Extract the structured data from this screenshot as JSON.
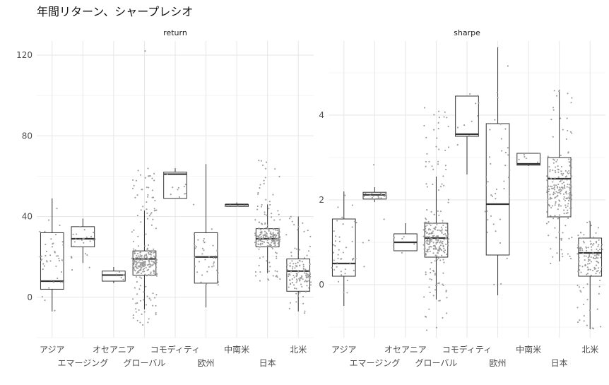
{
  "chart_data": {
    "type": "boxplot",
    "title": "年間リターン、シャープレシオ",
    "categories": [
      "アジア",
      "エマージング",
      "オセアニア",
      "グローバル",
      "コモディティ",
      "欧州",
      "中南米",
      "日本",
      "北米"
    ],
    "panels": [
      {
        "name": "return",
        "ylim": [
          -20,
          127
        ],
        "yticks": [
          0,
          40,
          80,
          120
        ],
        "boxes": [
          {
            "category": "アジア",
            "min": -7,
            "q1": 4,
            "median": 8,
            "q3": 32,
            "max": 49,
            "n": 45,
            "jitter_spread": [
              -8,
              44
            ]
          },
          {
            "category": "エマージング",
            "min": 17,
            "q1": 25,
            "median": 29,
            "q3": 35,
            "max": 39,
            "n": 25,
            "jitter_spread": [
              6,
              40
            ]
          },
          {
            "category": "オセアニア",
            "min": 7,
            "q1": 8,
            "median": 11,
            "q3": 13,
            "max": 15,
            "n": 6,
            "jitter_spread": [
              7,
              15
            ]
          },
          {
            "category": "グローバル",
            "min": -6,
            "q1": 11,
            "median": 19,
            "q3": 23,
            "max": 43,
            "n": 260,
            "jitter_spread": [
              -14,
              64
            ],
            "outliers": [
              122
            ]
          },
          {
            "category": "コモディティ",
            "min": 49,
            "q1": 49,
            "median": 61,
            "q3": 62,
            "max": 64,
            "n": 10,
            "jitter_spread": [
              48,
              64
            ]
          },
          {
            "category": "欧州",
            "min": -5,
            "q1": 7,
            "median": 20,
            "q3": 32,
            "max": 66,
            "n": 40,
            "jitter_spread": [
              -5,
              46
            ]
          },
          {
            "category": "中南米",
            "min": 45,
            "q1": 45,
            "median": 46,
            "q3": 46,
            "max": 47,
            "n": 6,
            "jitter_spread": [
              45,
              47
            ]
          },
          {
            "category": "日本",
            "min": 12,
            "q1": 25,
            "median": 29,
            "q3": 34,
            "max": 46,
            "n": 220,
            "jitter_spread": [
              8,
              68
            ]
          },
          {
            "category": "北米",
            "min": -7,
            "q1": 3,
            "median": 13,
            "q3": 19,
            "max": 40,
            "n": 130,
            "jitter_spread": [
              -8,
              41
            ]
          }
        ]
      },
      {
        "name": "sharpe",
        "ylim": [
          -1.25,
          5.75
        ],
        "yticks": [
          0,
          2,
          4
        ],
        "boxes": [
          {
            "category": "アジア",
            "min": -0.5,
            "q1": 0.2,
            "median": 0.5,
            "q3": 1.55,
            "max": 2.2,
            "n": 45,
            "jitter_spread": [
              -0.5,
              2.2
            ]
          },
          {
            "category": "エマージング",
            "min": 1.95,
            "q1": 2.02,
            "median": 2.12,
            "q3": 2.18,
            "max": 2.3,
            "n": 25,
            "jitter_spread": [
              0.4,
              3.15
            ]
          },
          {
            "category": "オセアニア",
            "min": 0.8,
            "q1": 0.8,
            "median": 1.0,
            "q3": 1.2,
            "max": 1.45,
            "n": 6,
            "jitter_spread": [
              0.6,
              1.45
            ]
          },
          {
            "category": "グローバル",
            "min": -0.35,
            "q1": 0.65,
            "median": 1.1,
            "q3": 1.45,
            "max": 2.55,
            "n": 260,
            "jitter_spread": [
              -1.15,
              4.3
            ]
          },
          {
            "category": "コモディティ",
            "min": 2.6,
            "q1": 3.5,
            "median": 3.55,
            "q3": 4.45,
            "max": 4.45,
            "n": 10,
            "jitter_spread": [
              2.6,
              4.5
            ]
          },
          {
            "category": "欧州",
            "min": -0.25,
            "q1": 0.7,
            "median": 1.9,
            "q3": 3.8,
            "max": 5.6,
            "n": 40,
            "jitter_spread": [
              -0.25,
              5.6
            ]
          },
          {
            "category": "中南米",
            "min": 2.8,
            "q1": 2.82,
            "median": 2.85,
            "q3": 3.1,
            "max": 3.1,
            "n": 6,
            "jitter_spread": [
              2.8,
              3.1
            ]
          },
          {
            "category": "日本",
            "min": 0.55,
            "q1": 1.6,
            "median": 2.5,
            "q3": 3.0,
            "max": 4.6,
            "n": 220,
            "jitter_spread": [
              0.5,
              4.6
            ]
          },
          {
            "category": "北米",
            "min": -1.05,
            "q1": 0.2,
            "median": 0.75,
            "q3": 1.1,
            "max": 1.5,
            "n": 130,
            "jitter_spread": [
              -1.05,
              1.5
            ]
          }
        ]
      }
    ]
  }
}
